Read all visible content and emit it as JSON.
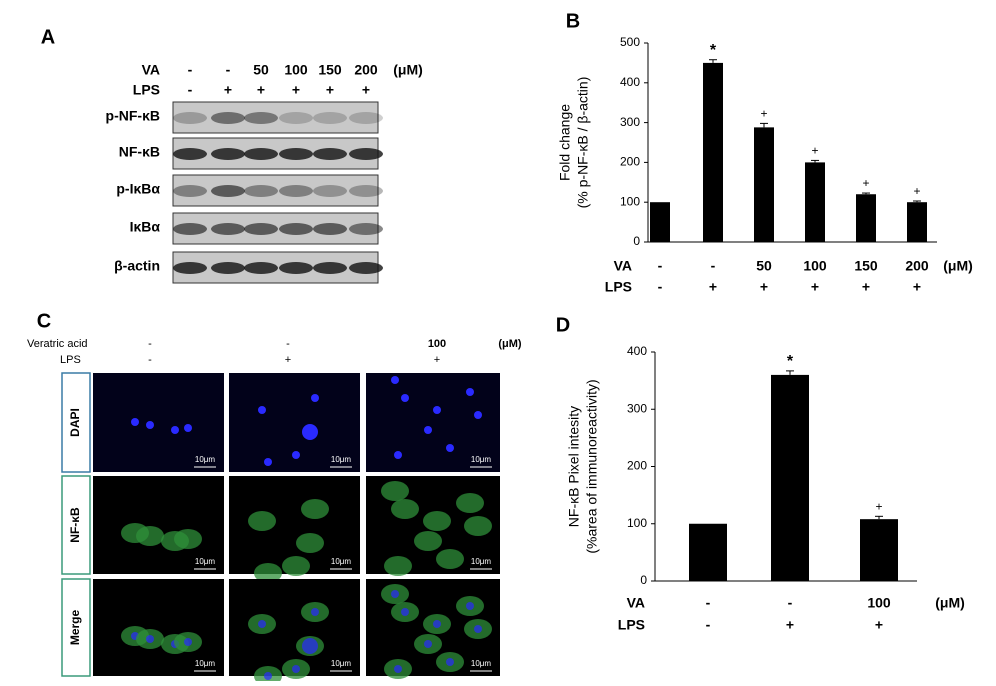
{
  "panel_a": {
    "label": "A",
    "rows": [
      {
        "label": "VA",
        "values": [
          "-",
          "-",
          "50",
          "100",
          "150",
          "200"
        ],
        "unit": "(μM)"
      },
      {
        "label": "LPS",
        "values": [
          "-",
          "+",
          "+",
          "+",
          "+",
          "+"
        ]
      }
    ],
    "blots": [
      "p-NF-κB",
      "NF-κB",
      "p-IκBα",
      "IκBα",
      "β-actin"
    ]
  },
  "panel_c": {
    "label": "C",
    "rows": [
      {
        "label": "Veratric acid",
        "values": [
          "-",
          "-",
          "100"
        ],
        "unit": "(μM)"
      },
      {
        "label": "LPS",
        "values": [
          "-",
          "+",
          "+"
        ]
      }
    ],
    "stains": [
      "DAPI",
      "NF-κB",
      "Merge"
    ],
    "scale_bar": "10μm"
  },
  "chart_data": [
    {
      "type": "bar",
      "panel": "B",
      "ylabel": [
        "Fold change",
        "(% p-NF-κB / β-actin)"
      ],
      "values": [
        100,
        450,
        288,
        200,
        120,
        100
      ],
      "errors": [
        0,
        8,
        10,
        5,
        3,
        3
      ],
      "markers": [
        null,
        "*",
        "+",
        "+",
        "+",
        "+"
      ],
      "color": "#000000",
      "ylim": [
        0,
        500
      ],
      "yticks": [
        0,
        100,
        200,
        300,
        400,
        500
      ],
      "rows": [
        {
          "label": "VA",
          "values": [
            "-",
            "-",
            "50",
            "100",
            "150",
            "200"
          ],
          "unit": "(μM)"
        },
        {
          "label": "LPS",
          "values": [
            "-",
            "+",
            "+",
            "+",
            "+",
            "+"
          ]
        }
      ]
    },
    {
      "type": "bar",
      "panel": "D",
      "ylabel": [
        "NF-κB Pixel intesity",
        "(%area of immunoreactivity)"
      ],
      "values": [
        100,
        360,
        108
      ],
      "errors": [
        0,
        7,
        5
      ],
      "markers": [
        null,
        "*",
        "+"
      ],
      "color": "#000000",
      "ylim": [
        0,
        400
      ],
      "yticks": [
        0,
        100,
        200,
        300,
        400
      ],
      "rows": [
        {
          "label": "VA",
          "values": [
            "-",
            "-",
            "100"
          ],
          "unit": "(μM)"
        },
        {
          "label": "LPS",
          "values": [
            "-",
            "+",
            "+"
          ]
        }
      ]
    }
  ]
}
